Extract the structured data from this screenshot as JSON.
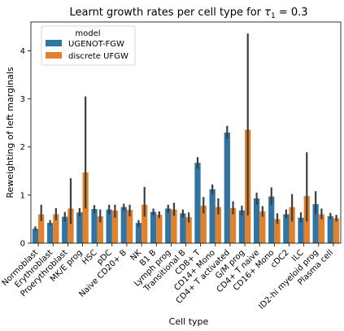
{
  "chart_data": {
    "type": "bar",
    "title_prefix": "Learnt growth rates per cell type for ",
    "title_math_symbol": "τ",
    "title_math_sub": "1",
    "title_suffix": " = 0.3",
    "xlabel": "Cell type",
    "ylabel": "Reweighting of left marginals",
    "ylim": [
      0,
      4.6
    ],
    "yticks": [
      0,
      1,
      2,
      3,
      4
    ],
    "grid": false,
    "legend": {
      "title": "model",
      "placement": "top-left"
    },
    "categories": [
      "Normoblast",
      "Erythroblast",
      "Proerythroblast",
      "MK/E prog",
      "HSC",
      "pDC",
      "Naive CD20+ B",
      "NK",
      "B1 B",
      "Lymph prog",
      "Transitional B",
      "CD8+ T",
      "CD14+ Mono",
      "CD4+ T activated",
      "G/M prog",
      "CD4+ T naive",
      "CD16+ Mono",
      "cDC2",
      "ILC",
      "ID2-hi myeloid prog",
      "Plasma cell"
    ],
    "series": [
      {
        "name": "UGENOT-FGW",
        "color": "#3274a1",
        "values": [
          0.3,
          0.42,
          0.55,
          0.64,
          0.71,
          0.7,
          0.75,
          0.42,
          0.65,
          0.72,
          0.62,
          1.67,
          1.12,
          2.3,
          0.68,
          0.93,
          0.97,
          0.6,
          0.53,
          0.81,
          0.56
        ],
        "err_low": [
          0.26,
          0.38,
          0.45,
          0.55,
          0.63,
          0.6,
          0.67,
          0.34,
          0.58,
          0.63,
          0.53,
          1.55,
          1.02,
          2.17,
          0.58,
          0.8,
          0.8,
          0.52,
          0.43,
          0.6,
          0.5
        ],
        "err_high": [
          0.35,
          0.48,
          0.65,
          0.73,
          0.79,
          0.8,
          0.82,
          0.48,
          0.72,
          0.8,
          0.7,
          1.79,
          1.22,
          2.44,
          0.78,
          1.05,
          1.16,
          0.7,
          0.64,
          1.08,
          0.63
        ]
      },
      {
        "name": "discrete UFGW",
        "color": "#e1812c",
        "values": [
          0.6,
          0.6,
          0.72,
          1.47,
          0.56,
          0.68,
          0.69,
          0.8,
          0.59,
          0.7,
          0.54,
          0.78,
          0.75,
          0.73,
          2.36,
          0.66,
          0.5,
          0.75,
          0.98,
          0.6,
          0.52
        ],
        "err_low": [
          0.46,
          0.48,
          0.4,
          0.72,
          0.43,
          0.53,
          0.56,
          0.55,
          0.52,
          0.57,
          0.43,
          0.62,
          0.6,
          0.6,
          0.58,
          0.55,
          0.4,
          0.45,
          0.45,
          0.5,
          0.45
        ],
        "err_high": [
          0.8,
          0.73,
          1.35,
          3.05,
          0.7,
          0.8,
          0.8,
          1.17,
          0.66,
          0.84,
          0.64,
          0.96,
          0.93,
          0.87,
          4.36,
          0.77,
          0.62,
          1.02,
          1.89,
          0.72,
          0.59
        ]
      }
    ]
  }
}
